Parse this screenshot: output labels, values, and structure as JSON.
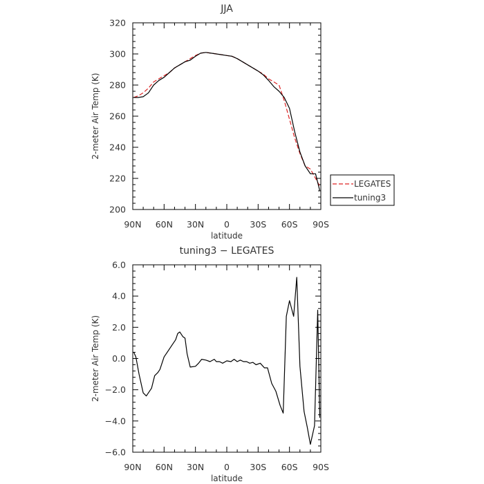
{
  "chart_data": [
    {
      "type": "line",
      "title": "JJA",
      "xlabel": "latitude",
      "ylabel": "2-meter Air Temp (K)",
      "xlim": [
        90,
        -90
      ],
      "ylim": [
        200,
        320
      ],
      "xticks": [
        90,
        60,
        30,
        0,
        -30,
        -60,
        -90
      ],
      "xtick_labels": [
        "90N",
        "60N",
        "30N",
        "0",
        "30S",
        "60S",
        "90S"
      ],
      "yticks": [
        200,
        220,
        240,
        260,
        280,
        300,
        320
      ],
      "ytick_labels": [
        "200",
        "220",
        "240",
        "260",
        "280",
        "300",
        "320"
      ],
      "legend": "right",
      "series": [
        {
          "name": "LEGATES",
          "color": "#dd2222",
          "dash": "dashed",
          "x": [
            89,
            85,
            80,
            75,
            70,
            65,
            60,
            55,
            50,
            45,
            40,
            35,
            30,
            25,
            20,
            15,
            10,
            5,
            0,
            -5,
            -10,
            -15,
            -20,
            -25,
            -30,
            -35,
            -40,
            -45,
            -50,
            -55,
            -60,
            -65,
            -70,
            -75,
            -80,
            -85,
            -89
          ],
          "y": [
            272,
            273,
            275,
            278,
            282,
            284,
            286,
            288,
            291,
            293,
            295,
            297,
            299,
            300.5,
            301,
            300.5,
            300,
            299.5,
            299,
            298.5,
            297,
            295,
            293,
            291,
            289,
            287,
            284,
            282,
            280,
            270,
            258,
            246,
            236,
            228,
            226,
            220,
            215
          ]
        },
        {
          "name": "tuning3",
          "color": "#000000",
          "dash": "solid",
          "x": [
            89,
            85,
            80,
            75,
            70,
            65,
            60,
            55,
            50,
            45,
            40,
            35,
            30,
            25,
            20,
            15,
            10,
            5,
            0,
            -5,
            -10,
            -15,
            -20,
            -25,
            -30,
            -35,
            -40,
            -45,
            -50,
            -55,
            -60,
            -65,
            -70,
            -75,
            -80,
            -85,
            -89
          ],
          "y": [
            272,
            272,
            272.5,
            275,
            280,
            283,
            285,
            288,
            291,
            293,
            295,
            296,
            298.5,
            300.5,
            301,
            300.5,
            300,
            299.5,
            299,
            298.5,
            297,
            295,
            293,
            291,
            289,
            286.5,
            283,
            279,
            276,
            272,
            265,
            250,
            237,
            228,
            223,
            223,
            212
          ]
        }
      ]
    },
    {
      "type": "line",
      "title": "tuning3 − LEGATES",
      "xlabel": "latitude",
      "ylabel": "2-meter Air Temp (K)",
      "xlim": [
        90,
        -90
      ],
      "ylim": [
        -6,
        6
      ],
      "xticks": [
        90,
        60,
        30,
        0,
        -30,
        -60,
        -90
      ],
      "xtick_labels": [
        "90N",
        "60N",
        "30N",
        "0",
        "30S",
        "60S",
        "90S"
      ],
      "yticks": [
        -6,
        -4,
        -2,
        0,
        2,
        4,
        6
      ],
      "ytick_labels": [
        "−6.0",
        "−4.0",
        "−2.0",
        "0.0",
        "2.0",
        "4.0",
        "6.0"
      ],
      "series": [
        {
          "color": "#000000",
          "x": [
            89,
            87,
            84,
            80,
            77,
            72,
            69,
            66,
            64,
            60,
            56,
            52,
            49,
            47,
            45,
            42,
            40,
            38,
            35,
            30,
            27,
            24,
            20,
            16,
            12,
            10,
            7,
            4,
            0,
            -4,
            -7,
            -10,
            -13,
            -16,
            -19,
            -22,
            -25,
            -28,
            -32,
            -36,
            -39,
            -43,
            -47,
            -51,
            -54,
            -57,
            -60,
            -64,
            -67,
            -70,
            -74,
            -77,
            -80,
            -84,
            -87,
            -89
          ],
          "y": [
            0.4,
            0.1,
            -1,
            -2.2,
            -2.4,
            -1.9,
            -1.1,
            -0.9,
            -0.7,
            0.1,
            0.5,
            0.9,
            1.2,
            1.6,
            1.7,
            1.4,
            1.3,
            0.3,
            -0.55,
            -0.5,
            -0.3,
            -0.05,
            -0.1,
            -0.2,
            -0.05,
            -0.2,
            -0.2,
            -0.3,
            -0.15,
            -0.2,
            -0.05,
            -0.2,
            -0.1,
            -0.2,
            -0.2,
            -0.3,
            -0.25,
            -0.4,
            -0.3,
            -0.6,
            -0.6,
            -1.6,
            -2.1,
            -3.0,
            -3.5,
            2.7,
            3.7,
            2.7,
            5.2,
            -0.5,
            -3.4,
            -4.4,
            -5.5,
            -4.3,
            3.1,
            -3.8
          ]
        }
      ]
    }
  ]
}
